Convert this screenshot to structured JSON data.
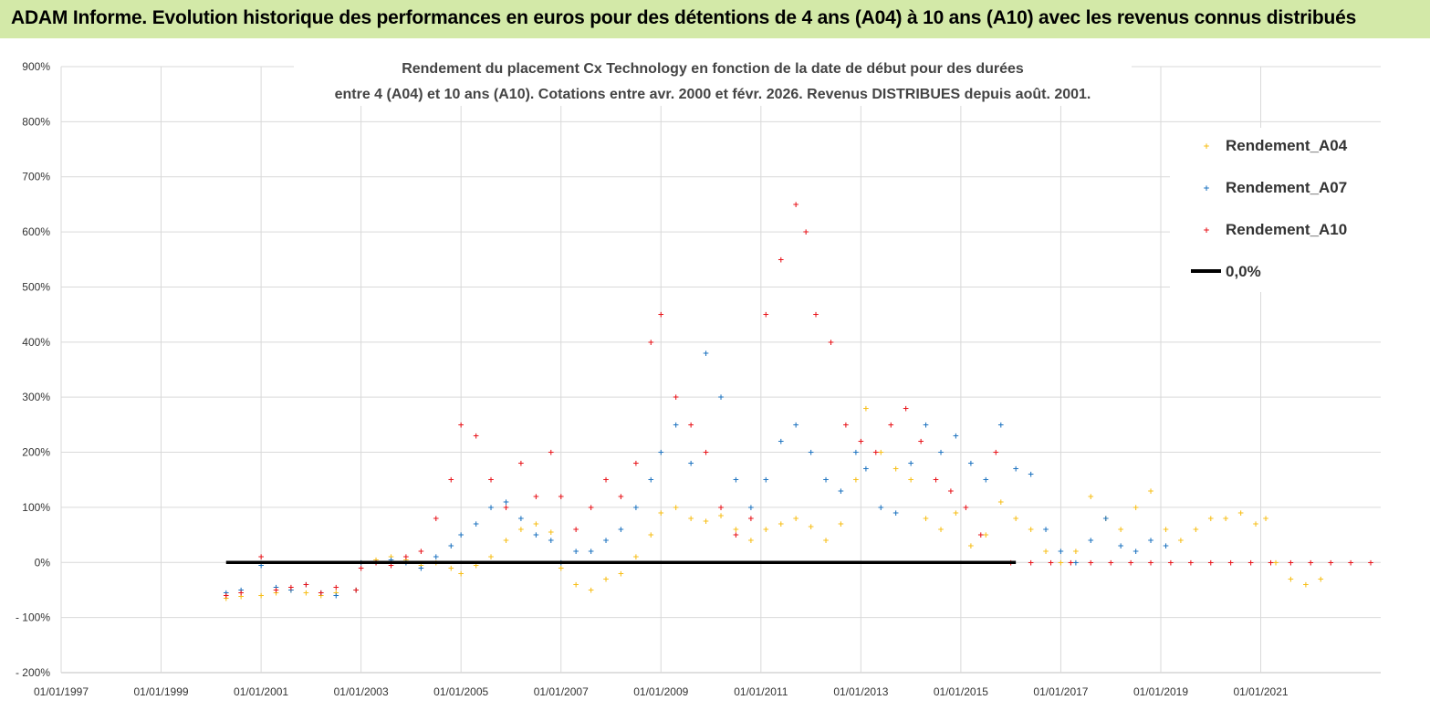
{
  "header": {
    "title": "ADAM Informe. Evolution historique des performances en euros pour des détentions de 4 ans (A04) à 10 ans (A10) avec les revenus connus distribués"
  },
  "chart_data": {
    "type": "scatter",
    "title_line1": "Rendement du placement Cx Technology  en fonction de la date de début pour des durées",
    "title_line2": "entre 4 (A04) et 10 ans (A10). Cotations entre avr. 2000 et févr. 2026. Revenus DISTRIBUES depuis août. 2001.",
    "x_unit": "year",
    "xlim": [
      1997.0,
      2023.4
    ],
    "ylim": [
      -200,
      900
    ],
    "y_ticks": [
      -200,
      -100,
      0,
      100,
      200,
      300,
      400,
      500,
      600,
      700,
      800,
      900
    ],
    "y_tick_labels": [
      "- 200%",
      "- 100%",
      "0%",
      "100%",
      "200%",
      "300%",
      "400%",
      "500%",
      "600%",
      "700%",
      "800%",
      "900%"
    ],
    "x_ticks": [
      1997,
      1999,
      2001,
      2003,
      2005,
      2007,
      2009,
      2011,
      2013,
      2015,
      2017,
      2019,
      2021
    ],
    "x_tick_labels": [
      "01/01/1997",
      "01/01/1999",
      "01/01/2001",
      "01/01/2003",
      "01/01/2005",
      "01/01/2007",
      "01/01/2009",
      "01/01/2011",
      "01/01/2013",
      "01/01/2015",
      "01/01/2017",
      "01/01/2019",
      "01/01/2021"
    ],
    "grid": true,
    "legend_position": "top-right",
    "series": [
      {
        "name": "Rendement_A04",
        "color": "#f7bf1a",
        "marker": "+",
        "x": [
          2000.3,
          2000.6,
          2001.0,
          2001.3,
          2001.6,
          2001.9,
          2002.2,
          2002.5,
          2002.9,
          2003.0,
          2003.3,
          2003.6,
          2003.9,
          2004.2,
          2004.5,
          2004.8,
          2005.0,
          2005.3,
          2005.6,
          2005.9,
          2006.2,
          2006.5,
          2006.8,
          2007.0,
          2007.3,
          2007.6,
          2007.9,
          2008.2,
          2008.5,
          2008.8,
          2009.0,
          2009.3,
          2009.6,
          2009.9,
          2010.2,
          2010.5,
          2010.8,
          2011.1,
          2011.4,
          2011.7,
          2012.0,
          2012.3,
          2012.6,
          2012.9,
          2013.1,
          2013.4,
          2013.7,
          2014.0,
          2014.3,
          2014.6,
          2014.9,
          2015.2,
          2015.5,
          2015.8,
          2016.1,
          2016.4,
          2016.7,
          2017.0,
          2017.3,
          2017.6,
          2017.9,
          2018.2,
          2018.5,
          2018.8,
          2019.1,
          2019.4,
          2019.7,
          2020.0,
          2020.3,
          2020.6,
          2020.9,
          2021.1,
          2021.3,
          2021.6,
          2021.9,
          2022.2
        ],
        "y": [
          -65,
          -62,
          -60,
          -55,
          -50,
          -55,
          -60,
          -55,
          -50,
          0,
          5,
          10,
          5,
          -5,
          0,
          -10,
          -20,
          -5,
          10,
          40,
          60,
          70,
          55,
          -10,
          -40,
          -50,
          -30,
          -20,
          10,
          50,
          90,
          100,
          80,
          75,
          85,
          60,
          40,
          60,
          70,
          80,
          65,
          40,
          70,
          150,
          280,
          200,
          170,
          150,
          80,
          60,
          90,
          30,
          50,
          110,
          80,
          60,
          20,
          0,
          20,
          120,
          80,
          60,
          100,
          130,
          60,
          40,
          60,
          80,
          80,
          90,
          70,
          80,
          0,
          -30,
          -40,
          -30
        ]
      },
      {
        "name": "Rendement_A07",
        "color": "#1f74c0",
        "marker": "+",
        "x": [
          2000.3,
          2000.6,
          2001.0,
          2001.3,
          2001.6,
          2001.9,
          2002.2,
          2002.5,
          2002.9,
          2003.0,
          2003.3,
          2003.6,
          2003.9,
          2004.2,
          2004.5,
          2004.8,
          2005.0,
          2005.3,
          2005.6,
          2005.9,
          2006.2,
          2006.5,
          2006.8,
          2007.0,
          2007.3,
          2007.6,
          2007.9,
          2008.2,
          2008.5,
          2008.8,
          2009.0,
          2009.3,
          2009.6,
          2009.9,
          2010.2,
          2010.5,
          2010.8,
          2011.1,
          2011.4,
          2011.7,
          2012.0,
          2012.3,
          2012.6,
          2012.9,
          2013.1,
          2013.4,
          2013.7,
          2014.0,
          2014.3,
          2014.6,
          2014.9,
          2015.2,
          2015.5,
          2015.8,
          2016.1,
          2016.4,
          2016.7,
          2017.0,
          2017.3,
          2017.6,
          2017.9,
          2018.2,
          2018.5,
          2018.8,
          2019.1
        ],
        "y": [
          -55,
          -50,
          -5,
          -45,
          -50,
          -40,
          -55,
          -60,
          -50,
          0,
          0,
          5,
          0,
          -10,
          10,
          30,
          50,
          70,
          100,
          110,
          80,
          50,
          40,
          0,
          20,
          20,
          40,
          60,
          100,
          150,
          200,
          250,
          180,
          380,
          300,
          150,
          100,
          150,
          220,
          250,
          200,
          150,
          130,
          200,
          170,
          100,
          90,
          180,
          250,
          200,
          230,
          180,
          150,
          250,
          170,
          160,
          60,
          20,
          0,
          40,
          80,
          30,
          20,
          40,
          30
        ]
      },
      {
        "name": "Rendement_A10",
        "color": "#e8151b",
        "marker": "+",
        "x": [
          2000.3,
          2000.6,
          2001.0,
          2001.3,
          2001.6,
          2001.9,
          2002.2,
          2002.5,
          2002.9,
          2003.0,
          2003.3,
          2003.6,
          2003.9,
          2004.2,
          2004.5,
          2004.8,
          2005.0,
          2005.3,
          2005.6,
          2005.9,
          2006.2,
          2006.5,
          2006.8,
          2007.0,
          2007.3,
          2007.6,
          2007.9,
          2008.2,
          2008.5,
          2008.8,
          2009.0,
          2009.3,
          2009.6,
          2009.9,
          2010.2,
          2010.5,
          2010.8,
          2011.1,
          2011.4,
          2011.7,
          2011.9,
          2012.1,
          2012.4,
          2012.7,
          2013.0,
          2013.3,
          2013.6,
          2013.9,
          2014.2,
          2014.5,
          2014.8,
          2015.1,
          2015.4,
          2015.7,
          2016.0,
          2016.4,
          2016.8,
          2017.2,
          2017.6,
          2018.0,
          2018.4,
          2018.8,
          2019.2,
          2019.6,
          2020.0,
          2020.4,
          2020.8,
          2021.2,
          2021.6,
          2022.0,
          2022.4,
          2022.8,
          2023.2
        ],
        "y": [
          -60,
          -55,
          10,
          -50,
          -45,
          -40,
          -55,
          -45,
          -50,
          -10,
          0,
          -5,
          10,
          20,
          80,
          150,
          250,
          230,
          150,
          100,
          180,
          120,
          200,
          120,
          60,
          100,
          150,
          120,
          180,
          400,
          450,
          300,
          250,
          200,
          100,
          50,
          80,
          450,
          550,
          650,
          600,
          450,
          400,
          250,
          220,
          200,
          250,
          280,
          220,
          150,
          130,
          100,
          50,
          200,
          0,
          0,
          0,
          0,
          0,
          0,
          0,
          0,
          0,
          0,
          0,
          0,
          0,
          0,
          0,
          0,
          0,
          0,
          0
        ]
      },
      {
        "name": "0,0%",
        "color": "#000000",
        "type": "line",
        "x": [
          2000.3,
          2016.1
        ],
        "y": [
          0,
          0
        ]
      }
    ]
  }
}
